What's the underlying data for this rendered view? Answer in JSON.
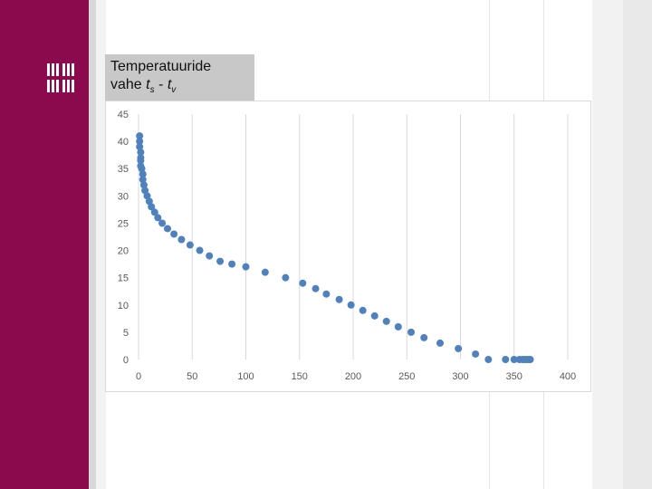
{
  "label": {
    "line1": "Temperatuuride",
    "line2_prefix": "vahe ",
    "var_a": "t",
    "sub_a": "s",
    "sep": " - ",
    "var_b": "t",
    "sub_b": "v"
  },
  "colors": {
    "sidebar": "#8b0a4d",
    "marker": "#4f81bd",
    "grid": "#d9d9d9",
    "label_box": "#c8c8c8"
  },
  "icons": {
    "logo": "university-logo-icon"
  },
  "chart_data": {
    "type": "scatter",
    "title": "",
    "xlabel": "",
    "ylabel": "",
    "xlim": [
      0,
      400
    ],
    "ylim": [
      0,
      45
    ],
    "xticks": [
      0,
      50,
      100,
      150,
      200,
      250,
      300,
      350,
      400
    ],
    "yticks": [
      0,
      5,
      10,
      15,
      20,
      25,
      30,
      35,
      40,
      45
    ],
    "grid": "vertical",
    "legend": "none",
    "series": [
      {
        "points": [
          [
            1,
            41
          ],
          [
            1,
            40
          ],
          [
            1,
            39
          ],
          [
            2,
            38
          ],
          [
            2,
            37
          ],
          [
            2,
            36.5
          ],
          [
            2,
            35.5
          ],
          [
            3,
            35
          ],
          [
            4,
            34
          ],
          [
            4,
            33
          ],
          [
            5,
            32
          ],
          [
            6,
            31
          ],
          [
            8,
            30
          ],
          [
            10,
            29
          ],
          [
            12,
            28
          ],
          [
            15,
            27
          ],
          [
            18,
            26
          ],
          [
            22,
            25
          ],
          [
            27,
            24
          ],
          [
            33,
            23
          ],
          [
            40,
            22
          ],
          [
            48,
            21
          ],
          [
            57,
            20
          ],
          [
            66,
            19
          ],
          [
            76,
            18
          ],
          [
            87,
            17.5
          ],
          [
            100,
            17
          ],
          [
            118,
            16
          ],
          [
            137,
            15
          ],
          [
            153,
            14
          ],
          [
            165,
            13
          ],
          [
            175,
            12
          ],
          [
            187,
            11
          ],
          [
            198,
            10
          ],
          [
            209,
            9
          ],
          [
            220,
            8
          ],
          [
            231,
            7
          ],
          [
            242,
            6
          ],
          [
            254,
            5
          ],
          [
            266,
            4
          ],
          [
            281,
            3
          ],
          [
            298,
            2
          ],
          [
            314,
            1
          ],
          [
            326,
            0
          ],
          [
            342,
            0
          ],
          [
            350,
            0
          ],
          [
            355,
            0
          ],
          [
            358,
            0
          ],
          [
            360,
            0
          ],
          [
            362,
            0
          ],
          [
            364,
            0
          ],
          [
            365,
            0
          ]
        ]
      }
    ]
  }
}
